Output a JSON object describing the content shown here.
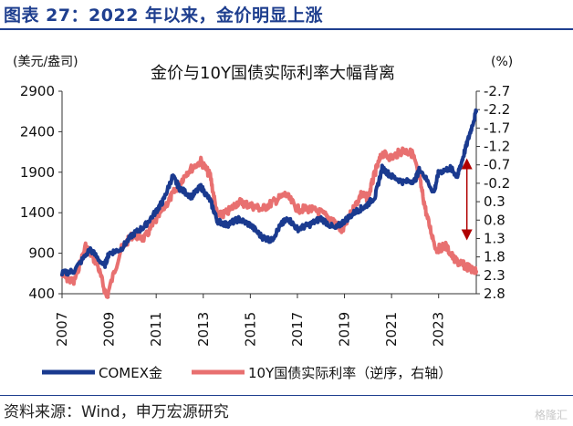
{
  "figure_title": "图表 27：2022 年以来，金价明显上涨",
  "source_note": "资料来源：Wind，申万宏源研究",
  "watermark": "格隆汇",
  "chart_data": {
    "type": "line",
    "title": "金价与10Y国债实际利率大幅背离",
    "y_left_label": "(美元/盎司)",
    "y_right_label": "(%)",
    "y_left_ticks": [
      "400",
      "900",
      "1400",
      "1900",
      "2400",
      "2900"
    ],
    "y_right_ticks": [
      "-2.7",
      "-2.2",
      "-1.7",
      "-1.2",
      "-0.7",
      "-0.2",
      "0.3",
      "0.8",
      "1.3",
      "1.8",
      "2.3",
      "2.8"
    ],
    "x_ticks": [
      "2007",
      "2009",
      "2011",
      "2013",
      "2015",
      "2017",
      "2019",
      "2021",
      "2023"
    ],
    "y_left_range": [
      400,
      2900
    ],
    "y_right_range": [
      -2.7,
      2.8
    ],
    "y_right_inverted": true,
    "x_range": [
      2007.0,
      2024.6
    ],
    "colors": {
      "gold": "#1a3a8f",
      "rate": "#e87070",
      "arrow": "#b00000"
    },
    "series": [
      {
        "name": "COMEX金",
        "axis": "left",
        "color": "#1a3a8f",
        "x": [
          2007.0,
          2007.5,
          2008.2,
          2008.8,
          2009.0,
          2009.5,
          2010.0,
          2010.5,
          2011.0,
          2011.3,
          2011.7,
          2012.0,
          2012.5,
          2012.9,
          2013.3,
          2013.6,
          2014.0,
          2014.5,
          2015.0,
          2015.5,
          2015.9,
          2016.3,
          2016.6,
          2017.0,
          2017.5,
          2018.0,
          2018.6,
          2019.0,
          2019.5,
          2019.9,
          2020.3,
          2020.6,
          2021.0,
          2021.5,
          2022.0,
          2022.2,
          2022.8,
          2023.0,
          2023.5,
          2023.8,
          2024.0,
          2024.3,
          2024.6
        ],
        "y": [
          650,
          680,
          950,
          740,
          900,
          950,
          1130,
          1230,
          1420,
          1550,
          1850,
          1700,
          1600,
          1720,
          1550,
          1300,
          1250,
          1320,
          1250,
          1100,
          1060,
          1250,
          1330,
          1200,
          1250,
          1330,
          1200,
          1300,
          1420,
          1480,
          1600,
          1950,
          1850,
          1780,
          1800,
          1950,
          1650,
          1900,
          1950,
          1850,
          2050,
          2350,
          2650
        ]
      },
      {
        "name": "10Y国债实际利率（逆序，右轴）",
        "axis": "right",
        "color": "#e87070",
        "x": [
          2007.0,
          2007.5,
          2008.0,
          2008.5,
          2008.9,
          2009.5,
          2010.0,
          2010.5,
          2011.0,
          2011.5,
          2011.9,
          2012.3,
          2012.9,
          2013.3,
          2013.6,
          2014.0,
          2014.5,
          2015.0,
          2015.5,
          2016.0,
          2016.5,
          2017.0,
          2017.5,
          2018.0,
          2018.5,
          2018.9,
          2019.3,
          2019.7,
          2020.0,
          2020.3,
          2020.6,
          2021.0,
          2021.5,
          2021.9,
          2022.2,
          2022.5,
          2022.9,
          2023.3,
          2023.7,
          2024.0,
          2024.3,
          2024.6
        ],
        "y": [
          2.3,
          2.5,
          1.5,
          2.0,
          2.9,
          1.6,
          1.2,
          1.3,
          0.8,
          0.3,
          -0.1,
          -0.5,
          -0.8,
          -0.4,
          0.7,
          0.6,
          0.3,
          0.4,
          0.5,
          0.3,
          0.1,
          0.5,
          0.5,
          0.6,
          0.8,
          1.1,
          0.6,
          0.1,
          0.2,
          -0.5,
          -1.0,
          -0.9,
          -1.1,
          -1.0,
          -0.3,
          0.7,
          1.6,
          1.5,
          1.9,
          2.0,
          2.1,
          2.2
        ]
      }
    ],
    "legend": {
      "placement": "bottom",
      "entries": [
        "COMEX金",
        "10Y国债实际利率（逆序，右轴）"
      ]
    },
    "annotation": {
      "type": "double-arrow",
      "x": 2024.2,
      "from_left_value": 2050,
      "to_right_value": 1.3
    }
  }
}
